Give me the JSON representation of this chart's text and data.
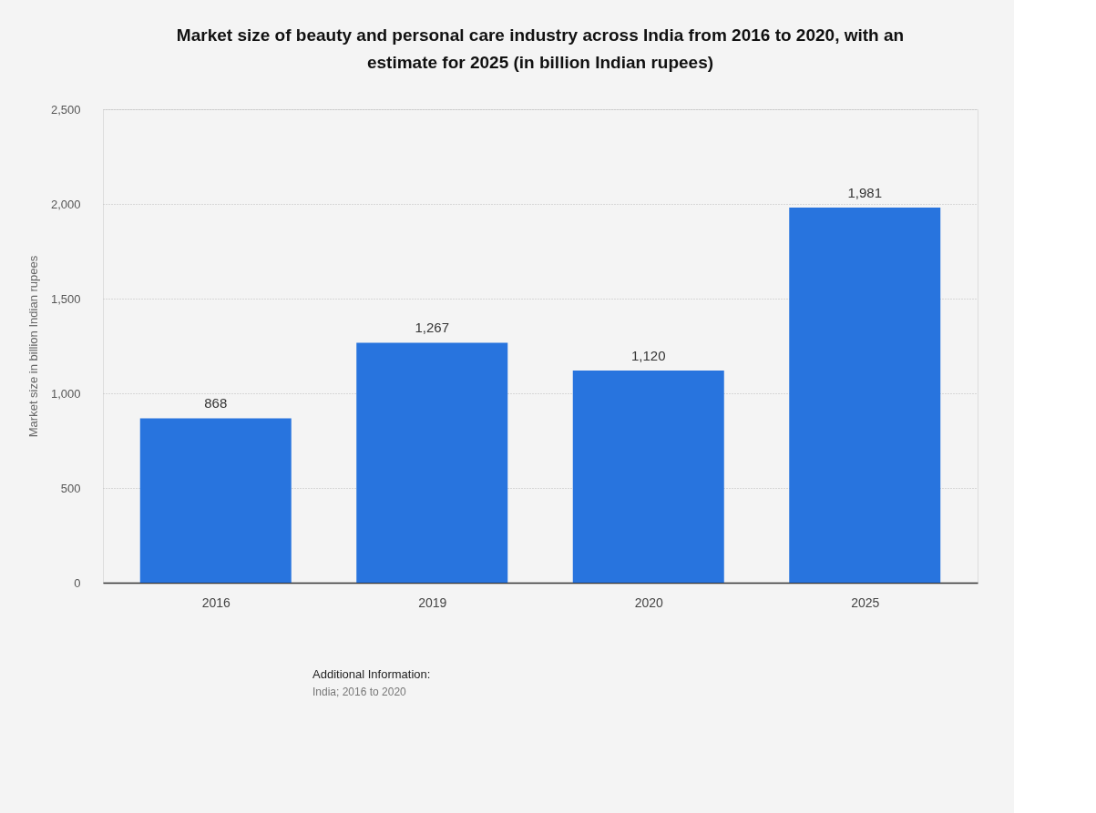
{
  "chart_data": {
    "type": "bar",
    "title": "Market size of beauty and personal care industry across India from 2016 to 2020, with an estimate for 2025 (in billion Indian rupees)",
    "ylabel": "Market size in billion Indian rupees",
    "categories": [
      "2016",
      "2019",
      "2020",
      "2025"
    ],
    "values": [
      868,
      1267,
      1120,
      1981
    ],
    "value_labels": [
      "868",
      "1,267",
      "1,120",
      "1,981"
    ],
    "color": "#2874de",
    "ylim": [
      0,
      2500
    ],
    "yticks": [
      0,
      {
        "value": 500,
        "label": "500"
      },
      {
        "value": 1000,
        "label": "1,000"
      },
      {
        "value": 1500,
        "label": "1,500"
      },
      {
        "value": 2000,
        "label": "2,000"
      },
      {
        "value": 2500,
        "label": "2,500"
      }
    ],
    "grid": "y",
    "annotations": [
      "Additional Information:",
      "India; 2016 to 2020"
    ]
  }
}
